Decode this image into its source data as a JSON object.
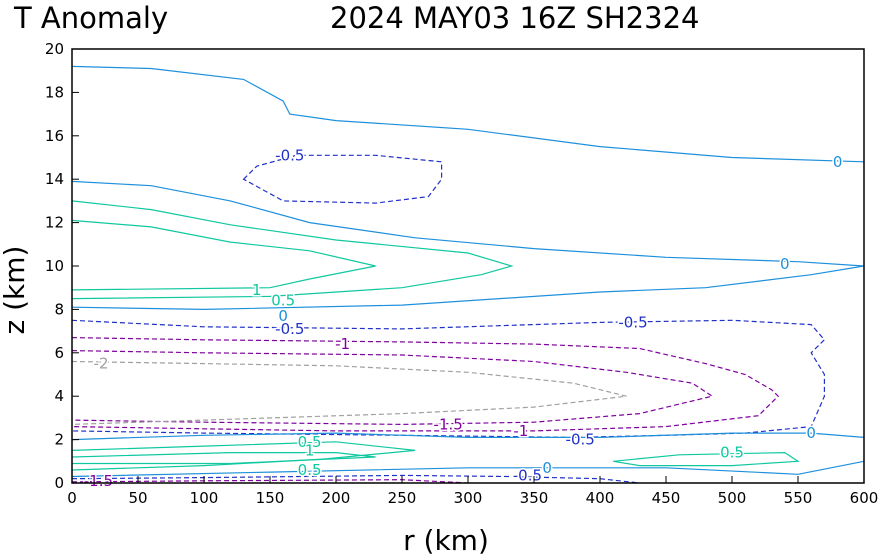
{
  "header": {
    "left_title": "T Anomaly",
    "right_title": "2024 MAY03 16Z   SH2324"
  },
  "chart_data": {
    "type": "contour",
    "title": "T Anomaly",
    "subtitle": "2024 MAY03 16Z   SH2324",
    "xlabel": "r (km)",
    "ylabel": "z (km)",
    "xlim": [
      0,
      600
    ],
    "ylim": [
      0,
      20
    ],
    "xticks": [
      "0",
      "50",
      "100",
      "150",
      "200",
      "250",
      "300",
      "350",
      "400",
      "450",
      "500",
      "550",
      "600"
    ],
    "yticks": [
      "0",
      "2",
      "4",
      "6",
      "8",
      "10",
      "12",
      "14",
      "16",
      "18",
      "20"
    ],
    "levels": [
      {
        "level": -2,
        "color": "#a0a0a0",
        "dashed": true
      },
      {
        "level": -1.5,
        "color": "#8000a0",
        "dashed": true
      },
      {
        "level": -1,
        "color": "#8000a0",
        "dashed": true
      },
      {
        "level": -0.5,
        "color": "#2030c8",
        "dashed": true
      },
      {
        "level": 0,
        "color": "#1e90dc",
        "dashed": false
      },
      {
        "level": 0.5,
        "color": "#10c8a0",
        "dashed": false
      },
      {
        "level": 1,
        "color": "#10c8a0",
        "dashed": false
      }
    ],
    "contours": [
      {
        "level": 0,
        "points": [
          [
            0,
            19.2
          ],
          [
            60,
            19.1
          ],
          [
            130,
            18.6
          ],
          [
            160,
            17.6
          ],
          [
            165,
            17.0
          ],
          [
            200,
            16.7
          ],
          [
            300,
            16.3
          ],
          [
            400,
            15.5
          ],
          [
            500,
            15.0
          ],
          [
            600,
            14.8
          ]
        ]
      },
      {
        "level": -0.5,
        "closed": true,
        "points": [
          [
            130,
            14.0
          ],
          [
            140,
            14.6
          ],
          [
            170,
            15.1
          ],
          [
            230,
            15.1
          ],
          [
            280,
            14.8
          ],
          [
            280,
            14.0
          ],
          [
            270,
            13.2
          ],
          [
            230,
            12.9
          ],
          [
            160,
            13.0
          ],
          [
            130,
            14.0
          ]
        ]
      },
      {
        "level": 0,
        "points": [
          [
            0,
            13.9
          ],
          [
            60,
            13.7
          ],
          [
            120,
            13.0
          ],
          [
            180,
            12.0
          ],
          [
            260,
            11.3
          ],
          [
            350,
            10.8
          ],
          [
            450,
            10.4
          ],
          [
            550,
            10.2
          ],
          [
            600,
            10.0
          ]
        ]
      },
      {
        "level": 0.5,
        "points": [
          [
            0,
            13.0
          ],
          [
            60,
            12.6
          ],
          [
            120,
            11.9
          ],
          [
            200,
            11.2
          ],
          [
            300,
            10.6
          ],
          [
            333,
            10.0
          ],
          [
            310,
            9.6
          ],
          [
            250,
            9.0
          ],
          [
            150,
            8.6
          ],
          [
            0,
            8.5
          ]
        ]
      },
      {
        "level": 1,
        "points": [
          [
            0,
            12.1
          ],
          [
            60,
            11.8
          ],
          [
            120,
            11.1
          ],
          [
            180,
            10.7
          ],
          [
            230,
            10.0
          ],
          [
            180,
            9.4
          ],
          [
            150,
            9.0
          ],
          [
            0,
            8.9
          ]
        ]
      },
      {
        "level": 0,
        "points": [
          [
            0,
            8.1
          ],
          [
            100,
            8.0
          ],
          [
            250,
            8.2
          ],
          [
            400,
            8.8
          ],
          [
            480,
            9.0
          ],
          [
            560,
            9.6
          ],
          [
            600,
            10.0
          ]
        ]
      },
      {
        "level": -0.5,
        "points": [
          [
            0,
            7.5
          ],
          [
            100,
            7.2
          ],
          [
            250,
            7.1
          ],
          [
            400,
            7.4
          ],
          [
            500,
            7.5
          ],
          [
            560,
            7.3
          ],
          [
            570,
            6.6
          ],
          [
            560,
            6.0
          ],
          [
            570,
            5.0
          ],
          [
            570,
            4.0
          ],
          [
            560,
            2.6
          ],
          [
            510,
            2.3
          ],
          [
            450,
            2.2
          ],
          [
            380,
            2.1
          ],
          [
            250,
            2.2
          ],
          [
            100,
            2.3
          ],
          [
            0,
            2.4
          ]
        ]
      },
      {
        "level": -1,
        "points": [
          [
            0,
            6.7
          ],
          [
            100,
            6.6
          ],
          [
            250,
            6.5
          ],
          [
            350,
            6.4
          ],
          [
            430,
            6.2
          ],
          [
            480,
            5.5
          ],
          [
            510,
            5.0
          ],
          [
            530,
            4.3
          ],
          [
            535,
            4.0
          ],
          [
            520,
            3.1
          ],
          [
            450,
            2.6
          ],
          [
            350,
            2.4
          ],
          [
            200,
            2.4
          ],
          [
            100,
            2.5
          ],
          [
            0,
            2.6
          ]
        ]
      },
      {
        "level": -1.5,
        "points": [
          [
            0,
            6.1
          ],
          [
            100,
            6.0
          ],
          [
            250,
            5.9
          ],
          [
            350,
            5.6
          ],
          [
            420,
            5.1
          ],
          [
            470,
            4.6
          ],
          [
            485,
            4.0
          ],
          [
            430,
            3.2
          ],
          [
            350,
            2.8
          ],
          [
            250,
            2.7
          ],
          [
            100,
            2.8
          ],
          [
            0,
            2.9
          ]
        ]
      },
      {
        "level": -2,
        "points": [
          [
            0,
            5.6
          ],
          [
            100,
            5.5
          ],
          [
            200,
            5.4
          ],
          [
            300,
            5.1
          ],
          [
            380,
            4.6
          ],
          [
            420,
            4.0
          ],
          [
            350,
            3.5
          ],
          [
            250,
            3.2
          ],
          [
            100,
            2.9
          ],
          [
            0,
            2.7
          ]
        ]
      },
      {
        "level": 0,
        "points": [
          [
            0,
            2.0
          ],
          [
            100,
            2.2
          ],
          [
            200,
            2.3
          ],
          [
            300,
            2.1
          ],
          [
            400,
            2.1
          ],
          [
            500,
            2.3
          ],
          [
            560,
            2.3
          ],
          [
            600,
            2.1
          ]
        ]
      },
      {
        "level": 0.5,
        "points": [
          [
            0,
            1.5
          ],
          [
            100,
            1.7
          ],
          [
            200,
            1.9
          ],
          [
            260,
            1.5
          ],
          [
            190,
            1.1
          ],
          [
            100,
            0.8
          ],
          [
            0,
            0.6
          ]
        ]
      },
      {
        "level": 1,
        "points": [
          [
            0,
            1.2
          ],
          [
            120,
            1.4
          ],
          [
            200,
            1.4
          ],
          [
            230,
            1.2
          ],
          [
            120,
            0.9
          ],
          [
            0,
            0.9
          ]
        ]
      },
      {
        "level": 0.5,
        "closed": true,
        "points": [
          [
            410,
            1.0
          ],
          [
            460,
            1.3
          ],
          [
            540,
            1.4
          ],
          [
            550,
            1.0
          ],
          [
            500,
            0.8
          ],
          [
            430,
            0.8
          ],
          [
            410,
            1.0
          ]
        ]
      },
      {
        "level": 0,
        "points": [
          [
            0,
            0.3
          ],
          [
            150,
            0.5
          ],
          [
            300,
            0.7
          ],
          [
            450,
            0.7
          ],
          [
            550,
            0.4
          ],
          [
            600,
            1.0
          ]
        ]
      },
      {
        "level": -0.5,
        "points": [
          [
            0,
            0.2
          ],
          [
            100,
            0.25
          ],
          [
            250,
            0.35
          ],
          [
            330,
            0.3
          ],
          [
            400,
            0.2
          ],
          [
            430,
            0.0
          ]
        ]
      },
      {
        "level": -1.5,
        "points": [
          [
            0,
            0.05
          ],
          [
            100,
            0.1
          ],
          [
            250,
            0.15
          ],
          [
            300,
            0.0
          ]
        ]
      }
    ],
    "contour_labels": [
      {
        "text": "-0.5",
        "x": 165,
        "y": 15.1,
        "level": -0.5
      },
      {
        "text": "0",
        "x": 580,
        "y": 14.8,
        "level": 0
      },
      {
        "text": "0",
        "x": 540,
        "y": 10.1,
        "level": 0
      },
      {
        "text": "1",
        "x": 140,
        "y": 8.9,
        "level": 1
      },
      {
        "text": "0.5",
        "x": 160,
        "y": 8.4,
        "level": 0.5
      },
      {
        "text": "0",
        "x": 160,
        "y": 7.7,
        "level": 0
      },
      {
        "text": "-0.5",
        "x": 165,
        "y": 7.1,
        "level": -0.5
      },
      {
        "text": "-0.5",
        "x": 425,
        "y": 7.4,
        "level": -0.5
      },
      {
        "text": "-1",
        "x": 205,
        "y": 6.4,
        "level": -1
      },
      {
        "text": "-2",
        "x": 22,
        "y": 5.5,
        "level": -2
      },
      {
        "text": "-1.5",
        "x": 285,
        "y": 2.7,
        "level": -1.5
      },
      {
        "text": "-1",
        "x": 340,
        "y": 2.4,
        "level": -1
      },
      {
        "text": "-0.5",
        "x": 385,
        "y": 2.0,
        "level": -0.5
      },
      {
        "text": "0",
        "x": 560,
        "y": 2.3,
        "level": 0
      },
      {
        "text": "0.5",
        "x": 180,
        "y": 1.9,
        "level": 0.5
      },
      {
        "text": "1",
        "x": 180,
        "y": 1.5,
        "level": 1
      },
      {
        "text": "0.5",
        "x": 500,
        "y": 1.4,
        "level": 0.5
      },
      {
        "text": "0.5",
        "x": 180,
        "y": 0.6,
        "level": 0.5
      },
      {
        "text": "0",
        "x": 360,
        "y": 0.7,
        "level": 0
      },
      {
        "text": "-0.5",
        "x": 345,
        "y": 0.35,
        "level": -0.5
      },
      {
        "text": "-1.5",
        "x": 20,
        "y": 0.1,
        "level": -1.5
      }
    ]
  }
}
